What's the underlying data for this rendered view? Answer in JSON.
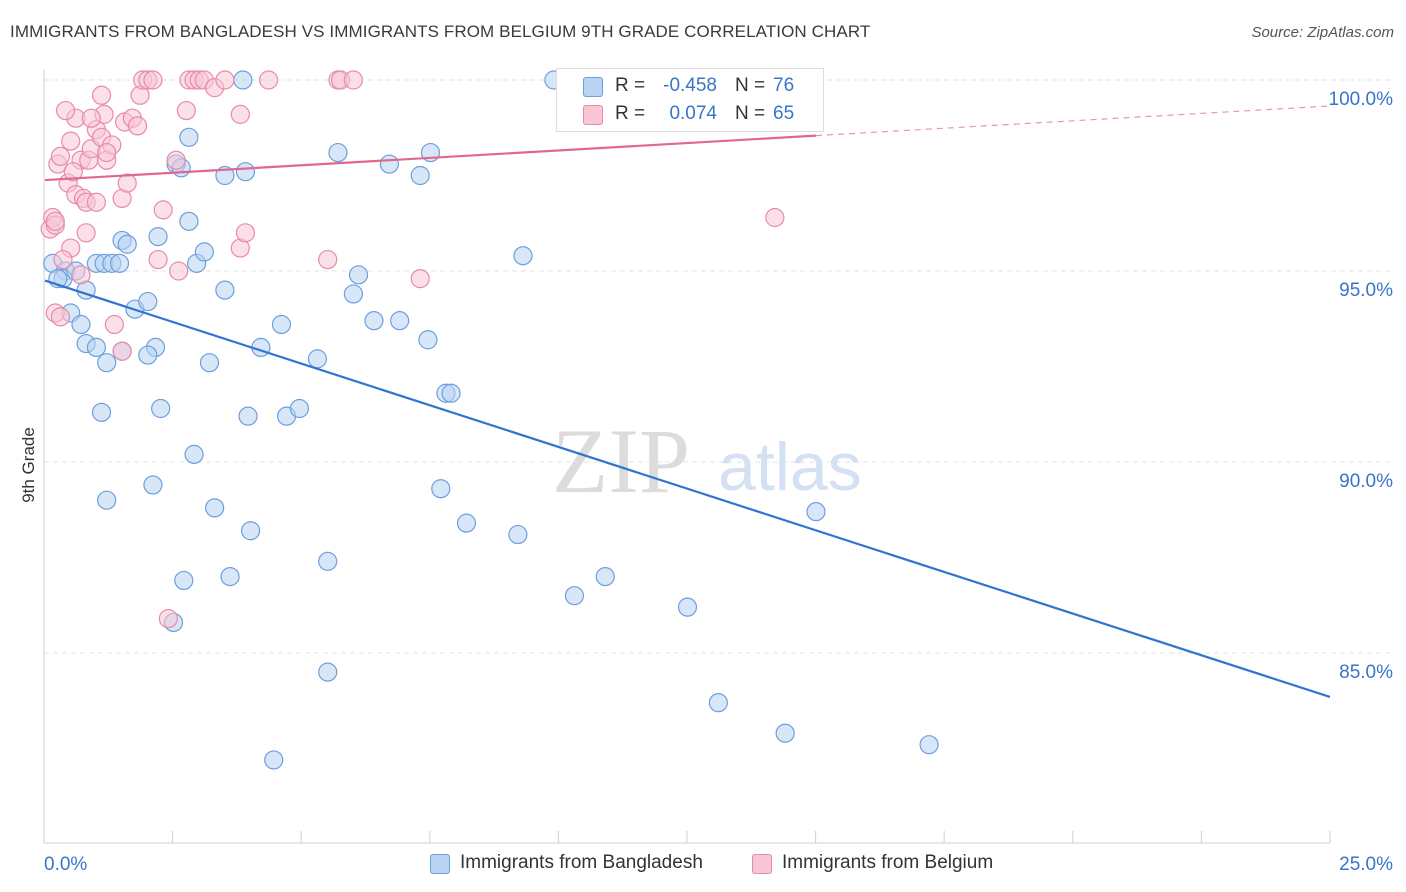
{
  "title": "IMMIGRANTS FROM BANGLADESH VS IMMIGRANTS FROM BELGIUM 9TH GRADE CORRELATION CHART",
  "source": "Source: ZipAtlas.com",
  "watermark": {
    "zip": "ZIP",
    "atlas": "atlas"
  },
  "colors": {
    "blue_fill": "#b8d3f3",
    "blue_stroke": "#6c9fdc",
    "blue_line": "#2f74d0",
    "pink_fill": "#f8c6d5",
    "pink_stroke": "#e88aa8",
    "pink_line": "#e06890",
    "value_text": "#3a74c8",
    "grid": "#e3e3e3"
  },
  "legend": {
    "rows": [
      {
        "r_label": "R =",
        "r_value": "-0.458",
        "n_label": "N =",
        "n_value": "76"
      },
      {
        "r_label": "R =",
        "r_value": "0.074",
        "n_label": "N =",
        "n_value": "65"
      }
    ]
  },
  "bottom_legend": [
    "Immigrants from Bangladesh",
    "Immigrants from Belgium"
  ],
  "chart_data": {
    "type": "scatter",
    "title": "IMMIGRANTS FROM BANGLADESH VS IMMIGRANTS FROM BELGIUM 9TH GRADE CORRELATION CHART",
    "xlabel": "",
    "ylabel": "9th Grade",
    "xlim": [
      0,
      25
    ],
    "ylim": [
      80.5,
      100.5
    ],
    "x_tick_labels": [
      {
        "value": 0,
        "label": "0.0%"
      },
      {
        "value": 25,
        "label": "25.0%"
      }
    ],
    "y_tick_labels": [
      {
        "value": 100,
        "label": "100.0%"
      },
      {
        "value": 95,
        "label": "95.0%"
      },
      {
        "value": 90,
        "label": "90.0%"
      },
      {
        "value": 85,
        "label": "85.0%"
      }
    ],
    "series": [
      {
        "name": "Immigrants from Bangladesh",
        "color": "blue",
        "trend": {
          "x": [
            0,
            25
          ],
          "y": [
            94.75,
            83.85
          ],
          "dashed_from": null
        },
        "points": [
          [
            0.15,
            95.2
          ],
          [
            0.4,
            95.0
          ],
          [
            0.35,
            94.8
          ],
          [
            0.25,
            94.8
          ],
          [
            0.5,
            93.9
          ],
          [
            0.7,
            93.6
          ],
          [
            0.8,
            93.1
          ],
          [
            1.0,
            95.2
          ],
          [
            1.15,
            95.2
          ],
          [
            1.3,
            95.2
          ],
          [
            1.45,
            95.2
          ],
          [
            1.5,
            95.8
          ],
          [
            1.6,
            95.7
          ],
          [
            1.75,
            94.0
          ],
          [
            2.0,
            94.2
          ],
          [
            2.15,
            93.0
          ],
          [
            2.2,
            95.9
          ],
          [
            2.25,
            91.4
          ],
          [
            2.55,
            97.8
          ],
          [
            2.65,
            97.7
          ],
          [
            2.8,
            98.5
          ],
          [
            2.8,
            96.3
          ],
          [
            2.95,
            95.2
          ],
          [
            3.1,
            95.5
          ],
          [
            3.2,
            92.6
          ],
          [
            3.5,
            97.5
          ],
          [
            3.5,
            94.5
          ],
          [
            3.85,
            100.0
          ],
          [
            3.9,
            97.6
          ],
          [
            3.95,
            91.2
          ],
          [
            4.0,
            88.2
          ],
          [
            4.2,
            93.0
          ],
          [
            4.45,
            82.2
          ],
          [
            4.6,
            93.6
          ],
          [
            4.7,
            91.2
          ],
          [
            4.95,
            91.4
          ],
          [
            5.3,
            92.7
          ],
          [
            5.5,
            87.4
          ],
          [
            5.5,
            84.5
          ],
          [
            5.7,
            98.1
          ],
          [
            6.0,
            94.4
          ],
          [
            6.1,
            94.9
          ],
          [
            6.4,
            93.7
          ],
          [
            6.7,
            97.8
          ],
          [
            6.9,
            93.7
          ],
          [
            7.3,
            97.5
          ],
          [
            7.45,
            93.2
          ],
          [
            7.5,
            98.1
          ],
          [
            7.8,
            91.8
          ],
          [
            7.9,
            91.8
          ],
          [
            7.7,
            89.3
          ],
          [
            8.2,
            88.4
          ],
          [
            9.2,
            88.1
          ],
          [
            9.3,
            95.4
          ],
          [
            9.9,
            100.0
          ],
          [
            10.3,
            86.5
          ],
          [
            10.9,
            87.0
          ],
          [
            12.5,
            86.2
          ],
          [
            13.1,
            83.7
          ],
          [
            14.4,
            82.9
          ],
          [
            15.0,
            88.7
          ],
          [
            17.2,
            82.6
          ],
          [
            1.2,
            92.6
          ],
          [
            1.5,
            92.9
          ],
          [
            1.0,
            93.0
          ],
          [
            0.8,
            94.5
          ],
          [
            0.6,
            95.0
          ],
          [
            1.1,
            91.3
          ],
          [
            2.0,
            92.8
          ],
          [
            2.5,
            85.8
          ],
          [
            2.7,
            86.9
          ],
          [
            3.3,
            88.8
          ],
          [
            3.6,
            87.0
          ],
          [
            2.9,
            90.2
          ],
          [
            1.2,
            89.0
          ],
          [
            2.1,
            89.4
          ]
        ]
      },
      {
        "name": "Immigrants from Belgium",
        "color": "pink",
        "trend": {
          "x": [
            0,
            25
          ],
          "y": [
            97.38,
            99.32
          ],
          "dashed_from": 15
        },
        "points": [
          [
            0.1,
            96.1
          ],
          [
            0.15,
            96.4
          ],
          [
            0.2,
            96.2
          ],
          [
            0.25,
            97.8
          ],
          [
            0.3,
            98.0
          ],
          [
            0.45,
            97.3
          ],
          [
            0.5,
            95.6
          ],
          [
            0.5,
            98.4
          ],
          [
            0.6,
            97.0
          ],
          [
            0.7,
            97.9
          ],
          [
            0.75,
            96.9
          ],
          [
            0.8,
            96.8
          ],
          [
            0.85,
            97.9
          ],
          [
            0.9,
            98.2
          ],
          [
            1.0,
            98.7
          ],
          [
            1.1,
            98.5
          ],
          [
            1.1,
            99.6
          ],
          [
            1.15,
            99.1
          ],
          [
            1.2,
            97.9
          ],
          [
            1.3,
            98.3
          ],
          [
            1.5,
            96.9
          ],
          [
            1.55,
            98.9
          ],
          [
            1.6,
            97.3
          ],
          [
            1.7,
            99.0
          ],
          [
            1.8,
            98.8
          ],
          [
            1.85,
            99.6
          ],
          [
            1.9,
            100.0
          ],
          [
            2.0,
            100.0
          ],
          [
            2.1,
            100.0
          ],
          [
            2.2,
            95.3
          ],
          [
            2.3,
            96.6
          ],
          [
            2.4,
            85.9
          ],
          [
            2.55,
            97.9
          ],
          [
            2.6,
            95.0
          ],
          [
            2.75,
            99.2
          ],
          [
            2.8,
            100.0
          ],
          [
            2.9,
            100.0
          ],
          [
            3.0,
            100.0
          ],
          [
            3.1,
            100.0
          ],
          [
            3.3,
            99.8
          ],
          [
            3.5,
            100.0
          ],
          [
            3.8,
            99.1
          ],
          [
            3.8,
            95.6
          ],
          [
            3.9,
            96.0
          ],
          [
            4.35,
            100.0
          ],
          [
            5.5,
            95.3
          ],
          [
            5.7,
            100.0
          ],
          [
            5.75,
            100.0
          ],
          [
            6.0,
            100.0
          ],
          [
            7.3,
            94.8
          ],
          [
            14.2,
            96.4
          ],
          [
            0.2,
            93.9
          ],
          [
            0.3,
            93.8
          ],
          [
            1.35,
            93.6
          ],
          [
            1.5,
            92.9
          ],
          [
            0.6,
            99.0
          ],
          [
            0.7,
            94.9
          ],
          [
            1.0,
            96.8
          ],
          [
            1.2,
            98.1
          ],
          [
            0.9,
            99.0
          ],
          [
            0.4,
            99.2
          ],
          [
            0.2,
            96.3
          ],
          [
            0.55,
            97.6
          ],
          [
            0.35,
            95.3
          ],
          [
            0.8,
            96.0
          ]
        ]
      }
    ]
  }
}
